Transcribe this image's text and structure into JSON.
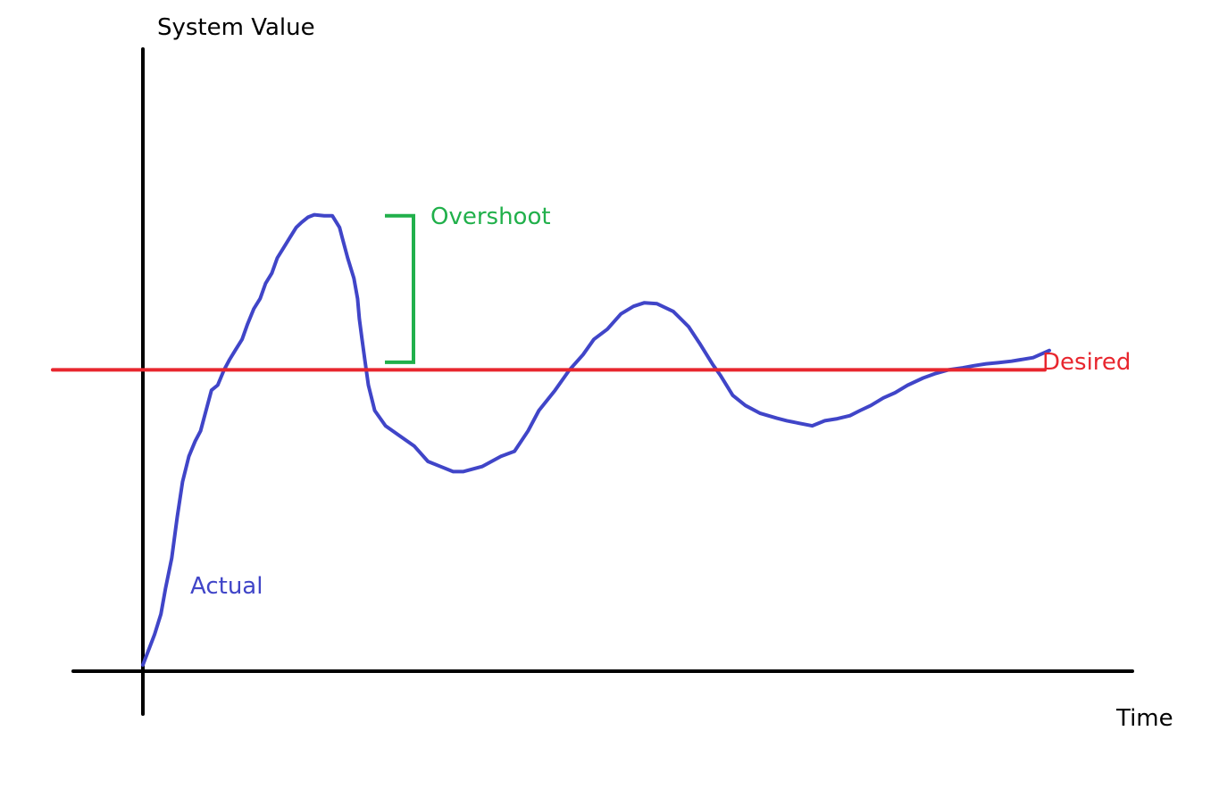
{
  "chart_data": {
    "type": "line",
    "title": "",
    "ylabel": "System Value",
    "xlabel": "Time",
    "grid": false,
    "legend": "none",
    "xlim": [
      0,
      100
    ],
    "ylim": [
      0,
      100
    ],
    "series": [
      {
        "name": "Actual",
        "color": "#4045c8",
        "x": [
          0,
          1.3,
          2.0,
          2.5,
          3.2,
          3.8,
          4.4,
          5.1,
          5.8,
          6.4,
          7.0,
          7.6,
          8.3,
          9.0,
          9.6,
          10.3,
          11.0,
          11.6,
          12.3,
          13.0,
          13.6,
          14.3,
          14.9,
          15.6,
          16.3,
          17.0,
          17.6,
          18.3,
          19.0,
          20.1,
          21.0,
          21.8,
          22.1,
          22.7,
          23.4,
          23.8,
          24.0,
          24.3,
          24.6,
          25.0,
          25.7,
          26.9,
          28.5,
          30.1,
          31.6,
          33.0,
          34.4,
          35.5,
          37.6,
          39.7,
          41.2,
          42.7,
          43.9,
          45.7,
          47.3,
          48.8,
          50.0,
          51.5,
          53.0,
          54.4,
          55.6,
          57.0,
          58.8,
          60.5,
          61.8,
          63.2,
          64.0,
          65.4,
          66.8,
          68.4,
          70.3,
          71.4,
          72.8,
          74.2,
          75.6,
          77.0,
          78.4,
          79.5,
          80.7,
          82.1,
          83.4,
          84.8,
          86.5,
          87.9,
          89.3,
          90.9,
          92.1,
          93.5,
          94.8,
          96.3,
          98.7,
          100.5
        ],
        "y": [
          0,
          6,
          10,
          15,
          21,
          29,
          36,
          41,
          44,
          46,
          50,
          54,
          55,
          58,
          60,
          62,
          64,
          67,
          70,
          72,
          75,
          77,
          80,
          82,
          84,
          86,
          87,
          88,
          88.5,
          88.3,
          88.3,
          86,
          84,
          80,
          76,
          72,
          68,
          64,
          60,
          55,
          50,
          47,
          45,
          43,
          40,
          39,
          38,
          38,
          39,
          41,
          42,
          46,
          50,
          54,
          58,
          61,
          64,
          66,
          69,
          70.5,
          71.2,
          71,
          69.5,
          66.5,
          63,
          59,
          57,
          53,
          51,
          49.5,
          48.5,
          48,
          47.5,
          47,
          48,
          48.4,
          49,
          50,
          51,
          52.5,
          53.5,
          55,
          56.4,
          57.3,
          58,
          58.4,
          58.8,
          59.2,
          59.4,
          59.7,
          60.4,
          61.8
        ]
      },
      {
        "name": "Desired",
        "color": "#e8262e",
        "x": [
          -10,
          100
        ],
        "y": [
          58,
          58
        ]
      }
    ],
    "annotations": [
      {
        "label": "Overshoot",
        "color": "#21b04b",
        "x": 30,
        "y_from": 59.5,
        "y_to": 88.3
      }
    ]
  }
}
